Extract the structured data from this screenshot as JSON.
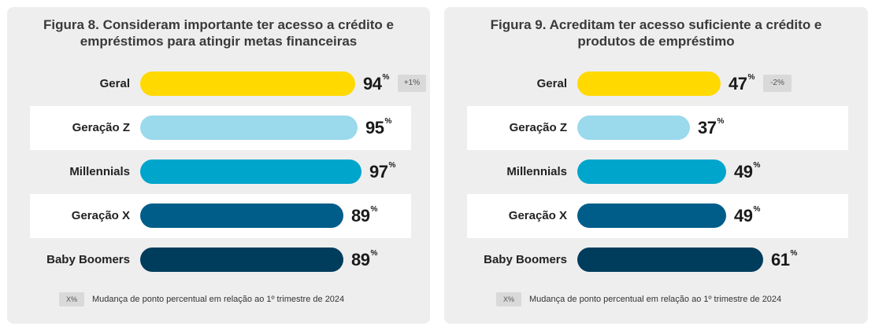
{
  "chart_data": [
    {
      "type": "bar",
      "orientation": "horizontal",
      "title": "Figura 8. Consideram importante ter acesso a crédito e empréstimos para atingir metas financeiras",
      "categories": [
        "Geral",
        "Geração Z",
        "Millennials",
        "Geração X",
        "Baby Boomers"
      ],
      "values": [
        94,
        95,
        97,
        89,
        89
      ],
      "value_labels": [
        "94",
        "95",
        "97",
        "89",
        "89"
      ],
      "unit": "%",
      "changes": [
        "+1%",
        null,
        null,
        null,
        null
      ],
      "colors": [
        "#ffd900",
        "#9bd9ec",
        "#00a5cc",
        "#005d8a",
        "#003c5c"
      ],
      "xlim": [
        0,
        100
      ],
      "legend": {
        "symbol": "X%",
        "text": "Mudança de ponto percentual em relação ao 1º trimestre de 2024"
      }
    },
    {
      "type": "bar",
      "orientation": "horizontal",
      "title": "Figura 9. Acreditam ter acesso suficiente a crédito e produtos de empréstimo",
      "categories": [
        "Geral",
        "Geração Z",
        "Millennials",
        "Geração X",
        "Baby Boomers"
      ],
      "values": [
        47,
        37,
        49,
        49,
        61
      ],
      "value_labels": [
        "47",
        "37",
        "49",
        "49",
        "61"
      ],
      "unit": "%",
      "changes": [
        "-2%",
        null,
        null,
        null,
        null
      ],
      "colors": [
        "#ffd900",
        "#9bd9ec",
        "#00a5cc",
        "#005d8a",
        "#003c5c"
      ],
      "xlim": [
        0,
        75
      ],
      "legend": {
        "symbol": "X%",
        "text": "Mudança de ponto percentual em relação ao 1º trimestre de 2024"
      }
    }
  ]
}
